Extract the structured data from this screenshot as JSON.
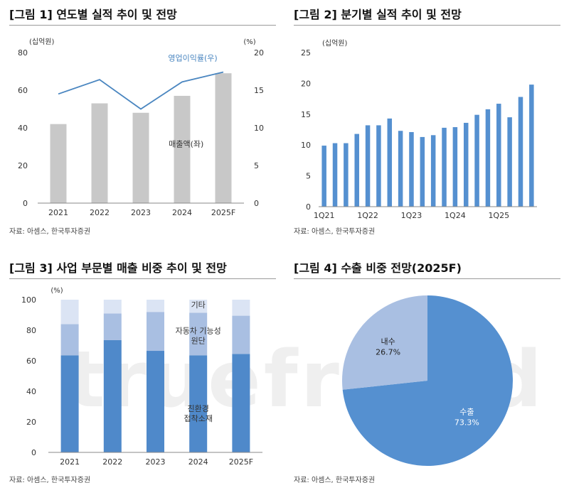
{
  "panels": {
    "p1": {
      "title": "[그림 1] 연도별 실적 추이 및 전망",
      "source": "자료: 아셈스, 한국투자증권"
    },
    "p2": {
      "title": "[그림 2] 분기별 실적 추이 및 전망",
      "source": "자료: 아셈스, 한국투자증권"
    },
    "p3": {
      "title": "[그림 3] 사업 부문별 매출 비중 추이 및 전망",
      "source": "자료: 아셈스, 한국투자증권"
    },
    "p4": {
      "title": "[그림 4] 수출 비중 전망(2025F)",
      "source": "자료: 아셈스, 한국투자증권"
    }
  },
  "watermark": "truefriend",
  "colors": {
    "gray_bar": "#c8c8c8",
    "line": "#4a86c0",
    "blue_bar": "#5590d0",
    "dark_blue": "#4f89ca",
    "mid_blue": "#a9bfe2",
    "light_blue": "#dbe4f4"
  },
  "chart_data": [
    {
      "type": "bar",
      "title": "[그림 1] 연도별 실적 추이 및 전망",
      "categories": [
        "2021",
        "2022",
        "2023",
        "2024",
        "2025F"
      ],
      "y_unit_left": "(십억원)",
      "y_unit_right": "(%)",
      "ylim": [
        0,
        80
      ],
      "yticks": [
        0,
        20,
        40,
        60,
        80
      ],
      "y2lim": [
        0,
        20
      ],
      "y2ticks": [
        0,
        5,
        10,
        15,
        20
      ],
      "series": [
        {
          "name": "매출액(좌)",
          "type": "bar",
          "axis": "left",
          "values": [
            42,
            53,
            48,
            57,
            69
          ]
        },
        {
          "name": "영업이익률(우)",
          "type": "line",
          "axis": "right",
          "values": [
            14.5,
            16.4,
            12.5,
            16.1,
            17.4
          ]
        }
      ],
      "grid": false
    },
    {
      "type": "bar",
      "title": "[그림 2] 분기별 실적 추이 및 전망",
      "y_unit": "(십억원)",
      "ylim": [
        0,
        25
      ],
      "yticks": [
        0,
        5,
        10,
        15,
        20,
        25
      ],
      "x_tick_labels": [
        "1Q21",
        "1Q22",
        "1Q23",
        "1Q24",
        "1Q25"
      ],
      "x_tick_indices": [
        0,
        4,
        8,
        12,
        16
      ],
      "values": [
        9.9,
        10.3,
        10.3,
        11.8,
        13.2,
        13.2,
        14.3,
        12.3,
        12.1,
        11.3,
        11.6,
        12.8,
        12.9,
        13.6,
        14.9,
        15.8,
        16.7,
        14.5,
        17.8,
        19.8
      ],
      "grid": false
    },
    {
      "type": "bar",
      "stacked": true,
      "title": "[그림 3] 사업 부문별 매출 비중 추이 및 전망",
      "categories": [
        "2021",
        "2022",
        "2023",
        "2024",
        "2025F"
      ],
      "y_unit": "(%)",
      "ylim": [
        0,
        100
      ],
      "yticks": [
        0,
        20,
        40,
        60,
        80,
        100
      ],
      "series": [
        {
          "name": "친환경\n접착소재",
          "values": [
            63.5,
            73.5,
            66.5,
            63.5,
            64.5
          ]
        },
        {
          "name": "자동차 기능성\n원단",
          "values": [
            20.5,
            17.5,
            25.5,
            28.0,
            25.0
          ]
        },
        {
          "name": "기타",
          "values": [
            16.0,
            9.0,
            8.0,
            8.5,
            10.5
          ]
        }
      ],
      "grid": false
    },
    {
      "type": "pie",
      "title": "[그림 4] 수출 비중 전망(2025F)",
      "slices": [
        {
          "label": "수출",
          "value": 73.3,
          "text": "73.3%"
        },
        {
          "label": "내수",
          "value": 26.7,
          "text": "26.7%"
        }
      ]
    }
  ]
}
